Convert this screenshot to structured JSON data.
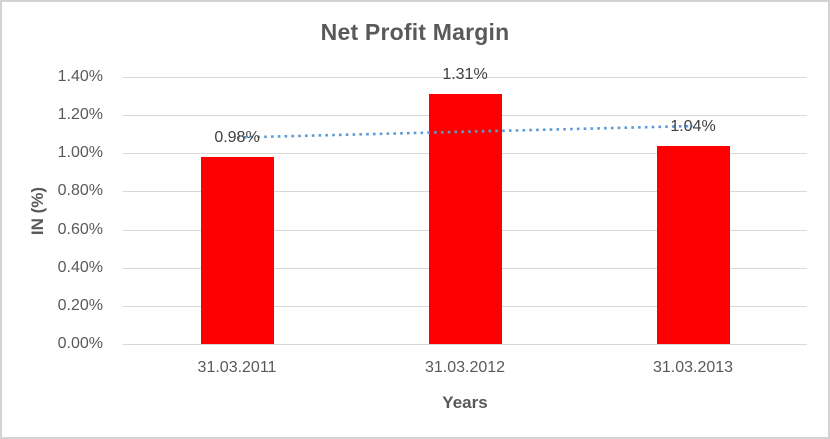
{
  "chart_data": {
    "type": "bar",
    "title": "Net Profit Margin",
    "xlabel": "Years",
    "ylabel": "IN (%)",
    "categories": [
      "31.03.2011",
      "31.03.2012",
      "31.03.2013"
    ],
    "values": [
      0.98,
      1.31,
      1.04
    ],
    "data_labels": [
      "0.98%",
      "1.31%",
      "1.04%"
    ],
    "ylim": [
      0,
      1.4
    ],
    "y_tick_values": [
      1.4,
      1.2,
      1.0,
      0.8,
      0.6,
      0.4,
      0.2,
      0.0
    ],
    "y_tick_labels": [
      "1.40%",
      "1.20%",
      "1.00%",
      "0.80%",
      "0.60%",
      "0.40%",
      "0.20%",
      "0.00%"
    ],
    "grid": true,
    "legend": false,
    "trendline": {
      "type": "linear",
      "style": "dotted",
      "values": [
        1.083,
        1.113,
        1.143
      ]
    },
    "colors": {
      "bar": "#FF0000",
      "trend": "#5B9BD5",
      "gridline": "#D9D9D9",
      "axis_text": "#595959",
      "title_text": "#595959",
      "data_label_text": "#404040",
      "chart_border": "#D3D3D3",
      "background": "#FFFFFF"
    }
  }
}
